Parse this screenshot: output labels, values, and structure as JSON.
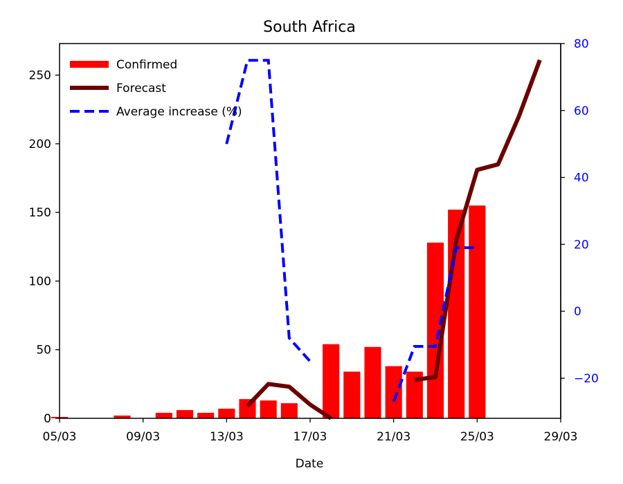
{
  "chart_data": {
    "type": "bar",
    "title": "South Africa",
    "xlabel": "Date",
    "ylabel": "",
    "ylabel_right": "",
    "x_ticks": [
      "05/03",
      "09/03",
      "13/03",
      "17/03",
      "21/03",
      "25/03",
      "29/03"
    ],
    "y_ticks": [
      "0",
      "50",
      "100",
      "150",
      "200",
      "250"
    ],
    "y_right_ticks": [
      "−20",
      "0",
      "20",
      "40",
      "60",
      "80"
    ],
    "xlim_days": [
      5,
      29
    ],
    "ylim": [
      0,
      273
    ],
    "ylim_right": [
      -32,
      80
    ],
    "grid": false,
    "legend_placement": "top-left",
    "colors": {
      "confirmed": "#ff0000",
      "forecast": "#6b0000",
      "average": "#0000ff",
      "right_axis": "#0000ff"
    },
    "series": [
      {
        "name": "Confirmed",
        "type": "bar",
        "x": [
          "05/03",
          "06/03",
          "07/03",
          "08/03",
          "09/03",
          "10/03",
          "11/03",
          "12/03",
          "13/03",
          "14/03",
          "15/03",
          "16/03",
          "17/03",
          "18/03",
          "19/03",
          "20/03",
          "21/03",
          "22/03",
          "23/03",
          "24/03",
          "25/03"
        ],
        "values": [
          1,
          0,
          0,
          2,
          0,
          4,
          6,
          4,
          7,
          14,
          13,
          11,
          0,
          54,
          34,
          52,
          38,
          34,
          128,
          152,
          155
        ]
      },
      {
        "name": "Forecast",
        "type": "line",
        "x": [
          "14/03",
          "15/03",
          "16/03",
          "17/03",
          "18/03",
          "22/03",
          "23/03",
          "24/03",
          "25/03",
          "26/03",
          "27/03",
          "28/03"
        ],
        "values": [
          9,
          25,
          23,
          10,
          0,
          28,
          30,
          130,
          181,
          185,
          220,
          261
        ]
      },
      {
        "name": "Average increase (%)",
        "type": "line",
        "axis": "right",
        "x": [
          "13/03",
          "14/03",
          "15/03",
          "16/03",
          "17/03",
          "21/03",
          "22/03",
          "23/03",
          "24/03",
          "25/03"
        ],
        "values": [
          50,
          75,
          75,
          -8,
          -15,
          -27,
          -10.5,
          -10.5,
          19,
          19
        ]
      }
    ]
  }
}
